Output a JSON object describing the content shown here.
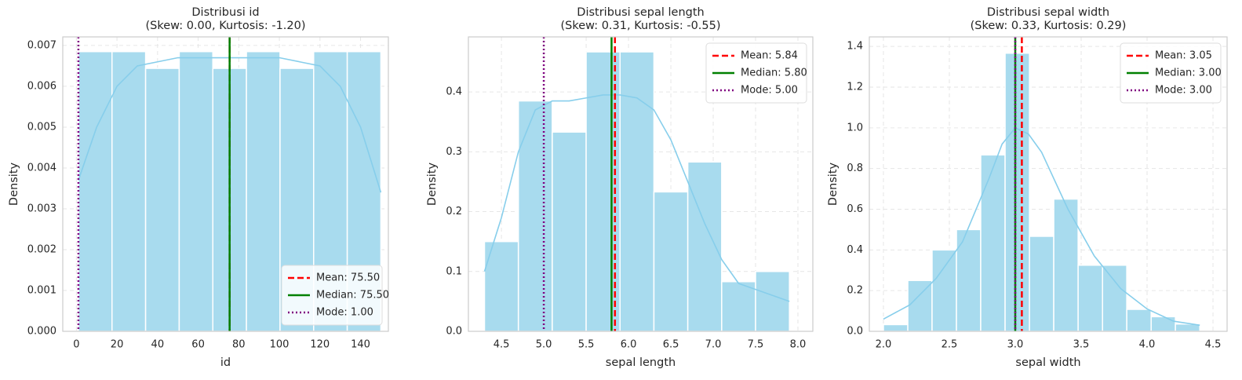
{
  "chart_data": [
    {
      "type": "histogram",
      "title": "Distribusi id",
      "subtitle": "(Skew: 0.00, Kurtosis: -1.20)",
      "xlabel": "id",
      "ylabel": "Density",
      "bins": [
        1,
        17.556,
        34.111,
        50.667,
        67.222,
        83.778,
        100.333,
        116.889,
        133.444,
        150
      ],
      "values": [
        0.00685,
        0.00685,
        0.00644,
        0.00685,
        0.00644,
        0.00685,
        0.00644,
        0.00685,
        0.00685
      ],
      "color": "#a8dbee",
      "kde_color": "#87ceeb",
      "kde_x": [
        1,
        10,
        20,
        30,
        40,
        50,
        60,
        75,
        90,
        100,
        110,
        120,
        130,
        140,
        150
      ],
      "kde_y": [
        0.0037,
        0.005,
        0.006,
        0.0065,
        0.0066,
        0.0067,
        0.0067,
        0.0067,
        0.0067,
        0.0067,
        0.0066,
        0.0065,
        0.006,
        0.005,
        0.0034
      ],
      "lines": [
        {
          "name": "Mean: 75.50",
          "value": 75.5,
          "color": "#ff0000",
          "style": "dashed"
        },
        {
          "name": "Median: 75.50",
          "value": 75.5,
          "color": "#008000",
          "style": "solid"
        },
        {
          "name": "Mode: 1.00",
          "value": 1,
          "color": "#800080",
          "style": "dotted"
        }
      ],
      "legend": "lower right",
      "grid": true,
      "xlim": [
        -6.7,
        153.7
      ],
      "xticks": [
        0,
        20,
        40,
        60,
        80,
        100,
        120,
        140
      ],
      "ylim": [
        0,
        0.00721
      ],
      "yticks": [
        {
          "value": 0,
          "label": "0.000"
        },
        {
          "value": 0.001,
          "label": "0.001"
        },
        {
          "value": 0.002,
          "label": "0.002"
        },
        {
          "value": 0.003,
          "label": "0.003"
        },
        {
          "value": 0.004,
          "label": "0.004"
        },
        {
          "value": 0.005,
          "label": "0.005"
        },
        {
          "value": 0.006,
          "label": "0.006"
        },
        {
          "value": 0.007,
          "label": "0.007"
        }
      ]
    },
    {
      "type": "histogram",
      "title": "Distribusi sepal length",
      "subtitle": "(Skew: 0.31, Kurtosis: -0.55)",
      "xlabel": "sepal length",
      "ylabel": "Density",
      "bins": [
        4.3,
        4.7,
        5.1,
        5.5,
        5.9,
        6.3,
        6.7,
        7.1,
        7.5,
        7.9
      ],
      "values": [
        0.15,
        0.385,
        0.333,
        0.467,
        0.467,
        0.233,
        0.283,
        0.083,
        0.1
      ],
      "color": "#a8dbee",
      "kde_color": "#87ceeb",
      "kde_x": [
        4.3,
        4.5,
        4.7,
        4.9,
        5.1,
        5.3,
        5.5,
        5.7,
        5.9,
        6.1,
        6.3,
        6.5,
        6.7,
        6.9,
        7.1,
        7.3,
        7.5,
        7.7,
        7.9
      ],
      "kde_y": [
        0.1,
        0.19,
        0.3,
        0.37,
        0.385,
        0.385,
        0.39,
        0.395,
        0.395,
        0.39,
        0.37,
        0.32,
        0.25,
        0.18,
        0.12,
        0.08,
        0.07,
        0.06,
        0.05
      ],
      "lines": [
        {
          "name": "Mean: 5.84",
          "value": 5.84,
          "color": "#ff0000",
          "style": "dashed"
        },
        {
          "name": "Median: 5.80",
          "value": 5.8,
          "color": "#008000",
          "style": "solid"
        },
        {
          "name": "Mode: 5.00",
          "value": 5,
          "color": "#800080",
          "style": "dotted"
        }
      ],
      "legend": "upper right",
      "grid": true,
      "xlim": [
        4.11,
        8.176
      ],
      "xticks": [
        4.5,
        {
          "value": 5,
          "label": "5.0"
        },
        5.5,
        {
          "value": 6,
          "label": "6.0"
        },
        6.5,
        {
          "value": 7,
          "label": "7.0"
        },
        7.5,
        {
          "value": 8,
          "label": "8.0"
        }
      ],
      "ylim": [
        0,
        0.492
      ],
      "yticks": [
        {
          "value": 0,
          "label": "0.0"
        },
        0.1,
        0.2,
        0.3,
        0.4
      ]
    },
    {
      "type": "histogram",
      "title": "Distribusi sepal width",
      "subtitle": "(Skew: 0.33, Kurtosis: 0.29)",
      "xlabel": "sepal width",
      "ylabel": "Density",
      "bins": [
        2.0,
        2.185,
        2.369,
        2.554,
        2.738,
        2.923,
        3.108,
        3.292,
        3.477,
        3.662,
        3.846,
        4.031,
        4.215,
        4.4
      ],
      "values": [
        0.033,
        0.25,
        0.4,
        0.5,
        0.867,
        1.367,
        0.467,
        0.65,
        0.325,
        0.325,
        0.108,
        0.072,
        0.036
      ],
      "color": "#a8dbee",
      "kde_color": "#87ceeb",
      "kde_x": [
        2.0,
        2.2,
        2.4,
        2.6,
        2.8,
        2.9,
        3.0,
        3.1,
        3.2,
        3.4,
        3.6,
        3.8,
        4.0,
        4.2,
        4.4
      ],
      "kde_y": [
        0.06,
        0.13,
        0.26,
        0.44,
        0.75,
        0.92,
        1.0,
        0.97,
        0.88,
        0.6,
        0.37,
        0.21,
        0.11,
        0.05,
        0.03
      ],
      "lines": [
        {
          "name": "Mean: 3.05",
          "value": 3.05,
          "color": "#ff0000",
          "style": "dashed"
        },
        {
          "name": "Median: 3.00",
          "value": 3,
          "color": "#008000",
          "style": "solid"
        },
        {
          "name": "Mode: 3.00",
          "value": 3,
          "color": "#800080",
          "style": "dotted"
        }
      ],
      "legend": "upper right",
      "grid": true,
      "xlim": [
        1.893,
        4.607
      ],
      "xticks": [
        {
          "value": 2,
          "label": "2.0"
        },
        2.5,
        {
          "value": 3,
          "label": "3.0"
        },
        3.5,
        {
          "value": 4,
          "label": "4.0"
        },
        4.5
      ],
      "ylim": [
        0,
        1.447
      ],
      "yticks": [
        {
          "value": 0,
          "label": "0.0"
        },
        0.2,
        0.4,
        0.6,
        0.8,
        {
          "value": 1,
          "label": "1.0"
        },
        1.2,
        1.4
      ]
    }
  ]
}
